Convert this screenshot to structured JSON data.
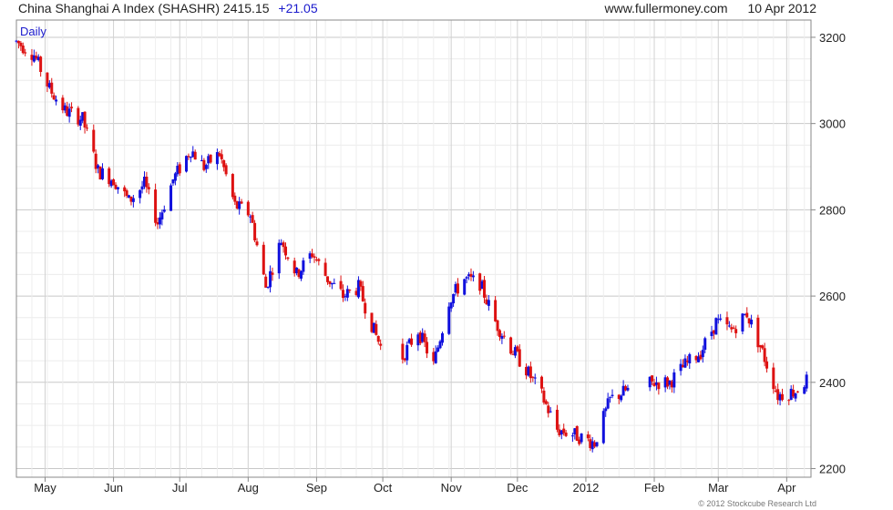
{
  "header": {
    "title": "China Shanghai A Index (SHASHR)",
    "last": "2415.15",
    "change": "+21.05",
    "site": "www.fullermoney.com",
    "date": "10 Apr 2012"
  },
  "footer": {
    "copyright": "© 2012 Stockcube Research Ltd"
  },
  "chart_data": {
    "type": "candlestick",
    "period_label": "Daily",
    "ylim": [
      2180,
      3240
    ],
    "y_ticks": [
      2200,
      2400,
      2600,
      2800,
      3000,
      3200
    ],
    "month_labels": [
      "May",
      "Jun",
      "Jul",
      "Aug",
      "Sep",
      "Oct",
      "Nov",
      "Dec",
      "2012",
      "Feb",
      "Mar",
      "Apr"
    ],
    "up_color": "#1010dd",
    "down_color": "#dd1111",
    "x_range": [
      "2011-04-18",
      "2012-04-12"
    ],
    "anchors": [
      [
        "2011-04-18",
        3190
      ],
      [
        "2011-04-26",
        3160
      ],
      [
        "2011-05-03",
        3080
      ],
      [
        "2011-05-10",
        3030
      ],
      [
        "2011-05-18",
        3010
      ],
      [
        "2011-05-25",
        2890
      ],
      [
        "2011-06-01",
        2870
      ],
      [
        "2011-06-08",
        2820
      ],
      [
        "2011-06-15",
        2860
      ],
      [
        "2011-06-21",
        2770
      ],
      [
        "2011-06-28",
        2870
      ],
      [
        "2011-07-06",
        2940
      ],
      [
        "2011-07-12",
        2900
      ],
      [
        "2011-07-19",
        2930
      ],
      [
        "2011-07-26",
        2810
      ],
      [
        "2011-08-02",
        2790
      ],
      [
        "2011-08-09",
        2620
      ],
      [
        "2011-08-16",
        2730
      ],
      [
        "2011-08-23",
        2650
      ],
      [
        "2011-08-30",
        2700
      ],
      [
        "2011-09-06",
        2640
      ],
      [
        "2011-09-13",
        2600
      ],
      [
        "2011-09-20",
        2620
      ],
      [
        "2011-09-27",
        2520
      ],
      [
        "2011-10-01",
        2470
      ],
      [
        "2011-10-10",
        2460
      ],
      [
        "2011-10-17",
        2520
      ],
      [
        "2011-10-24",
        2440
      ],
      [
        "2011-10-31",
        2590
      ],
      [
        "2011-11-07",
        2640
      ],
      [
        "2011-11-14",
        2630
      ],
      [
        "2011-11-21",
        2540
      ],
      [
        "2011-11-28",
        2480
      ],
      [
        "2011-12-05",
        2430
      ],
      [
        "2011-12-12",
        2370
      ],
      [
        "2011-12-19",
        2290
      ],
      [
        "2011-12-26",
        2280
      ],
      [
        "2012-01-05",
        2260
      ],
      [
        "2012-01-12",
        2360
      ],
      [
        "2012-01-19",
        2380
      ],
      [
        "2012-02-01",
        2400
      ],
      [
        "2012-02-08",
        2400
      ],
      [
        "2012-02-15",
        2440
      ],
      [
        "2012-02-22",
        2470
      ],
      [
        "2012-02-29",
        2540
      ],
      [
        "2012-03-07",
        2520
      ],
      [
        "2012-03-14",
        2560
      ],
      [
        "2012-03-21",
        2470
      ],
      [
        "2012-03-28",
        2370
      ],
      [
        "2012-04-05",
        2380
      ],
      [
        "2012-04-10",
        2405
      ]
    ]
  }
}
